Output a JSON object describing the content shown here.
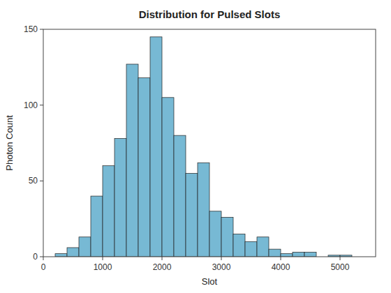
{
  "chart_data": {
    "type": "histogram",
    "title": "Distribution for Pulsed Slots",
    "x_label": "Slot",
    "y_label": "Photon Count",
    "bins": [
      200,
      400,
      600,
      800,
      1000,
      1200,
      1400,
      1600,
      1800,
      2000,
      2200,
      2400,
      2600,
      2800,
      3000,
      3200,
      3400,
      3600,
      3800,
      4000,
      4200,
      4400,
      4600,
      4800,
      5000,
      5200
    ],
    "values": [
      2,
      6,
      13,
      40,
      60,
      78,
      127,
      118,
      145,
      105,
      80,
      55,
      62,
      30,
      26,
      15,
      10,
      13,
      5,
      2,
      3,
      3,
      0,
      1,
      1
    ],
    "color": "#77b9d4",
    "xlim": [
      0,
      5600
    ],
    "ylim": [
      0,
      150
    ],
    "xticks": [
      0,
      1000,
      2000,
      3000,
      4000,
      5000
    ],
    "yticks": [
      0,
      50,
      100,
      150
    ],
    "grid": false
  }
}
